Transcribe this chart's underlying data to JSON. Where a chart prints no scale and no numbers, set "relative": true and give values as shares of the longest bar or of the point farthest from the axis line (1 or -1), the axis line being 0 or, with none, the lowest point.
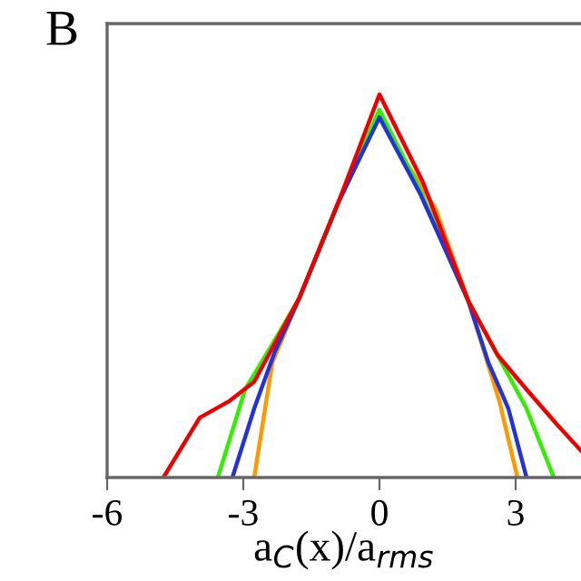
{
  "chart_data": {
    "type": "line",
    "title": "B",
    "xlabel": "a$_{C}$(x)/a$_{rms}$",
    "relative": true,
    "xlim": [
      -6,
      4.44
    ],
    "xticks": [
      -6,
      -3,
      0,
      3
    ],
    "grid": false,
    "legend": false,
    "series": [
      {
        "color": "#ff9900",
        "x": [
          -2.76,
          -2.36,
          -1.76,
          -0.9,
          0,
          0.6,
          1.24,
          1.96,
          2.64,
          3.04
        ],
        "values": [
          0,
          0.3,
          0.47,
          0.72,
          0.95,
          0.82,
          0.7,
          0.46,
          0.2,
          0
        ]
      },
      {
        "color": "#33ee00",
        "x": [
          -3.56,
          -2.96,
          -2.3,
          -1.76,
          -0.9,
          0,
          0.9,
          1.96,
          2.6,
          3.24,
          3.84
        ],
        "values": [
          0,
          0.23,
          0.36,
          0.47,
          0.72,
          0.96,
          0.75,
          0.46,
          0.32,
          0.18,
          0
        ]
      },
      {
        "color": "#2233dd",
        "x": [
          -3.24,
          -2.76,
          -2.3,
          -1.76,
          -0.9,
          0,
          0.9,
          1.96,
          2.4,
          2.84,
          3.24
        ],
        "values": [
          0,
          0.18,
          0.33,
          0.47,
          0.72,
          0.94,
          0.74,
          0.46,
          0.3,
          0.18,
          0
        ]
      },
      {
        "color": "#ee0000",
        "x": [
          -4.76,
          -3.96,
          -3.3,
          -2.76,
          -1.76,
          -0.9,
          0,
          0.96,
          1.96,
          2.6,
          3.24,
          3.9,
          4.44
        ],
        "values": [
          0,
          0.156,
          0.2,
          0.25,
          0.47,
          0.72,
          1,
          0.77,
          0.46,
          0.32,
          0.23,
          0.14,
          0.07
        ]
      }
    ]
  }
}
